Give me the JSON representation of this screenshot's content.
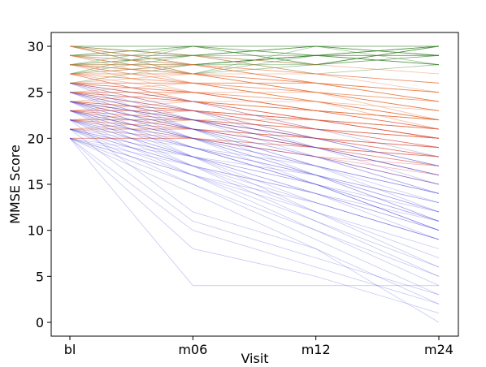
{
  "chart_data": {
    "type": "line",
    "title": "",
    "xlabel": "Visit",
    "ylabel": "MMSE Score",
    "categories": [
      "bl",
      "m06",
      "m12",
      "m24"
    ],
    "ylim": [
      -1.5,
      31.5
    ],
    "yticks": [
      0,
      5,
      10,
      15,
      20,
      25,
      30
    ],
    "grid": false,
    "legend": "none",
    "series_groups": [
      {
        "group": "green",
        "color": "#2e7d1f",
        "trajectories": [
          [
            30,
            30,
            30,
            30
          ],
          [
            29,
            30,
            29,
            30
          ],
          [
            30,
            29,
            30,
            29
          ],
          [
            28,
            29,
            30,
            30
          ],
          [
            29,
            28,
            29,
            29
          ],
          [
            30,
            30,
            29,
            28
          ],
          [
            28,
            30,
            28,
            30
          ],
          [
            29,
            29,
            30,
            28
          ],
          [
            27,
            28,
            29,
            30
          ],
          [
            28,
            28,
            28,
            29
          ],
          [
            30,
            28,
            29,
            30
          ],
          [
            29,
            30,
            28,
            29
          ],
          [
            27,
            29,
            29,
            28
          ],
          [
            28,
            27,
            30,
            29
          ],
          [
            30,
            29,
            28,
            30
          ],
          [
            26,
            28,
            29,
            29
          ],
          [
            29,
            27,
            28,
            30
          ],
          [
            28,
            29,
            27,
            28
          ],
          [
            27,
            30,
            30,
            29
          ],
          [
            30,
            27,
            29,
            28
          ]
        ]
      },
      {
        "group": "orange",
        "color": "#e8743b",
        "trajectories": [
          [
            30,
            28,
            26,
            24
          ],
          [
            29,
            27,
            25,
            23
          ],
          [
            28,
            26,
            25,
            22
          ],
          [
            27,
            26,
            24,
            22
          ],
          [
            26,
            25,
            23,
            21
          ],
          [
            25,
            24,
            23,
            22
          ],
          [
            27,
            25,
            24,
            21
          ],
          [
            28,
            27,
            25,
            24
          ],
          [
            26,
            24,
            22,
            20
          ],
          [
            25,
            23,
            22,
            20
          ],
          [
            24,
            23,
            21,
            20
          ],
          [
            29,
            26,
            24,
            22
          ],
          [
            30,
            27,
            26,
            25
          ],
          [
            27,
            27,
            26,
            25
          ],
          [
            26,
            26,
            25,
            24
          ],
          [
            25,
            25,
            24,
            23
          ],
          [
            24,
            24,
            23,
            22
          ],
          [
            23,
            22,
            21,
            19
          ],
          [
            28,
            25,
            23,
            21
          ],
          [
            26,
            27,
            25,
            23
          ],
          [
            29,
            28,
            27,
            26
          ],
          [
            27,
            24,
            23,
            22
          ],
          [
            25,
            26,
            24,
            22
          ],
          [
            24,
            25,
            23,
            21
          ],
          [
            28,
            28,
            26,
            25
          ],
          [
            30,
            29,
            27,
            26
          ],
          [
            26,
            25,
            25,
            23
          ],
          [
            23,
            23,
            22,
            20
          ],
          [
            27,
            26,
            26,
            24
          ],
          [
            25,
            24,
            24,
            22
          ],
          [
            22,
            22,
            21,
            20
          ],
          [
            29,
            29,
            28,
            27
          ],
          [
            28,
            27,
            27,
            26
          ],
          [
            26,
            24,
            23,
            22
          ],
          [
            24,
            22,
            22,
            21
          ],
          [
            27,
            27,
            25,
            23
          ],
          [
            25,
            25,
            23,
            22
          ],
          [
            23,
            24,
            22,
            20
          ],
          [
            28,
            26,
            26,
            24
          ],
          [
            26,
            26,
            24,
            22
          ],
          [
            21,
            22,
            21,
            20
          ],
          [
            22,
            21,
            20,
            19
          ],
          [
            21,
            21,
            20,
            18
          ],
          [
            20,
            20,
            19,
            18
          ],
          [
            22,
            23,
            22,
            21
          ],
          [
            24,
            23,
            22,
            21
          ],
          [
            23,
            21,
            20,
            19
          ],
          [
            29,
            27,
            26,
            25
          ],
          [
            30,
            28,
            27,
            25
          ],
          [
            27,
            28,
            26,
            24
          ]
        ]
      },
      {
        "group": "red",
        "color": "#d9534f",
        "trajectories": [
          [
            25,
            22,
            19,
            17
          ],
          [
            24,
            21,
            19,
            16
          ],
          [
            23,
            20,
            18,
            15
          ],
          [
            26,
            23,
            20,
            18
          ],
          [
            22,
            20,
            18,
            17
          ],
          [
            24,
            22,
            20,
            19
          ],
          [
            23,
            21,
            19,
            18
          ],
          [
            25,
            23,
            21,
            20
          ],
          [
            21,
            20,
            19,
            18
          ],
          [
            22,
            21,
            19,
            17
          ],
          [
            27,
            24,
            21,
            19
          ],
          [
            26,
            24,
            22,
            21
          ],
          [
            23,
            22,
            20,
            19
          ],
          [
            24,
            23,
            22,
            20
          ],
          [
            22,
            22,
            21,
            19
          ],
          [
            25,
            24,
            22,
            20
          ],
          [
            21,
            21,
            20,
            18
          ],
          [
            20,
            20,
            18,
            16
          ],
          [
            26,
            25,
            23,
            21
          ],
          [
            23,
            23,
            21,
            20
          ]
        ]
      },
      {
        "group": "blue",
        "color": "#3b3bd6",
        "trajectories": [
          [
            24,
            20,
            16,
            12
          ],
          [
            23,
            19,
            15,
            11
          ],
          [
            22,
            18,
            14,
            10
          ],
          [
            21,
            17,
            13,
            9
          ],
          [
            20,
            16,
            12,
            8
          ],
          [
            25,
            21,
            17,
            13
          ],
          [
            24,
            19,
            15,
            10
          ],
          [
            23,
            18,
            13,
            9
          ],
          [
            22,
            17,
            12,
            7
          ],
          [
            21,
            16,
            11,
            6
          ],
          [
            20,
            15,
            10,
            5
          ],
          [
            26,
            22,
            18,
            14
          ],
          [
            25,
            22,
            19,
            16
          ],
          [
            24,
            21,
            18,
            15
          ],
          [
            23,
            20,
            17,
            14
          ],
          [
            22,
            19,
            16,
            13
          ],
          [
            21,
            18,
            15,
            12
          ],
          [
            20,
            17,
            14,
            11
          ],
          [
            26,
            21,
            16,
            11
          ],
          [
            25,
            20,
            15,
            10
          ],
          [
            24,
            18,
            12,
            6
          ],
          [
            23,
            17,
            11,
            5
          ],
          [
            22,
            16,
            10,
            4
          ],
          [
            21,
            15,
            9,
            3
          ],
          [
            20,
            14,
            8,
            2
          ],
          [
            20,
            10,
            6,
            2
          ],
          [
            20,
            8,
            5,
            1
          ],
          [
            20,
            4,
            4,
            4
          ],
          [
            22,
            12,
            8,
            0
          ],
          [
            21,
            11,
            7,
            3
          ],
          [
            24,
            22,
            20,
            17
          ],
          [
            23,
            21,
            19,
            16
          ],
          [
            22,
            20,
            18,
            15
          ],
          [
            21,
            19,
            17,
            14
          ],
          [
            20,
            18,
            16,
            13
          ],
          [
            25,
            23,
            20,
            17
          ],
          [
            24,
            20,
            17,
            14
          ],
          [
            23,
            19,
            16,
            12
          ],
          [
            22,
            18,
            15,
            11
          ],
          [
            21,
            18,
            14,
            9
          ],
          [
            26,
            23,
            19,
            15
          ],
          [
            25,
            21,
            18,
            14
          ],
          [
            24,
            21,
            17,
            12
          ],
          [
            23,
            20,
            16,
            11
          ],
          [
            22,
            19,
            15,
            10
          ],
          [
            21,
            17,
            14,
            10
          ],
          [
            20,
            16,
            13,
            9
          ],
          [
            26,
            24,
            21,
            18
          ],
          [
            25,
            22,
            20,
            17
          ],
          [
            24,
            22,
            19,
            16
          ]
        ]
      }
    ]
  }
}
